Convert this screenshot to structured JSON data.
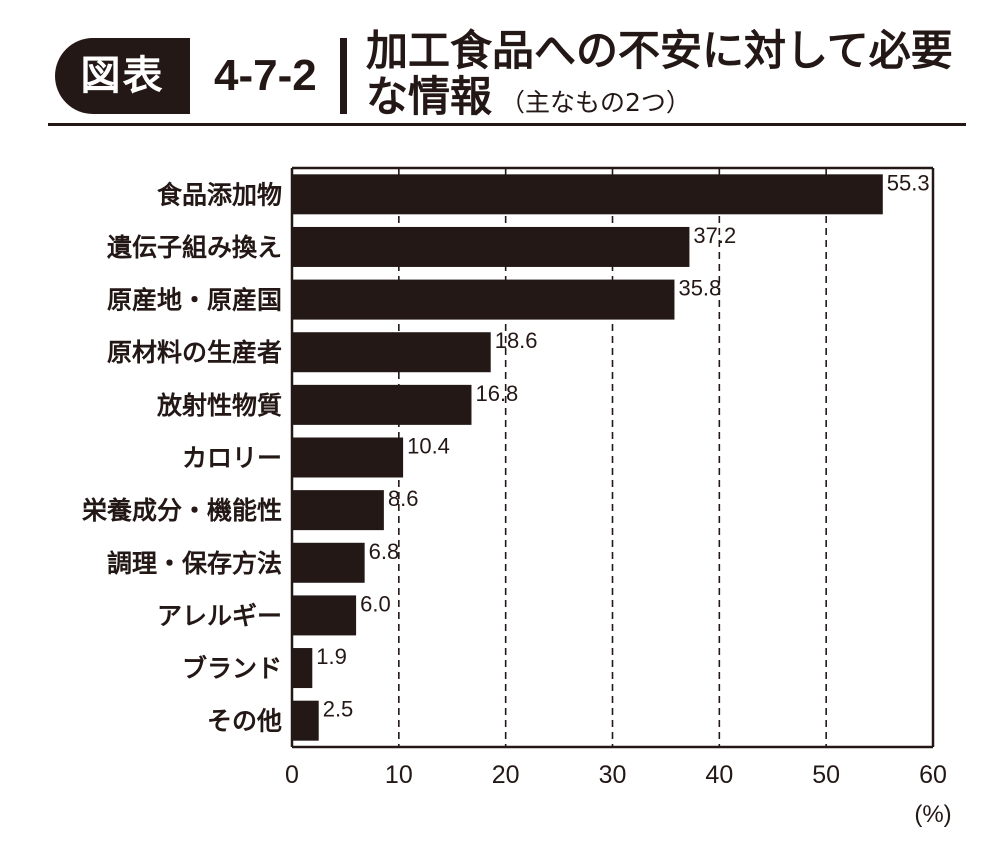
{
  "header": {
    "badge": "図表",
    "figure_number": "4-7-2",
    "title_line1": "加工食品への不安に対して必要",
    "title_line2": "な情報",
    "subtitle": "（主なもの2つ）"
  },
  "chart_data": {
    "type": "bar",
    "orientation": "horizontal",
    "categories": [
      "食品添加物",
      "遺伝子組み換え",
      "原産地・原産国",
      "原材料の生産者",
      "放射性物質",
      "カロリー",
      "栄養成分・機能性",
      "調理・保存方法",
      "アレルギー",
      "ブランド",
      "その他"
    ],
    "value_labels": [
      "55.3",
      "37.2",
      "35.8",
      "18.6",
      "16.8",
      "10.4",
      "8.6",
      "6.8",
      "6.0",
      "1.9",
      "2.5"
    ],
    "values": [
      55.3,
      37.2,
      35.8,
      18.6,
      16.8,
      10.4,
      8.6,
      6.8,
      6.0,
      1.9,
      2.5
    ],
    "xlim": [
      0,
      60
    ],
    "xticks": [
      "0",
      "10",
      "20",
      "30",
      "40",
      "50",
      "60"
    ],
    "unit_label": "(%)",
    "grid": "vertical dashed",
    "bar_color": "#231815"
  }
}
